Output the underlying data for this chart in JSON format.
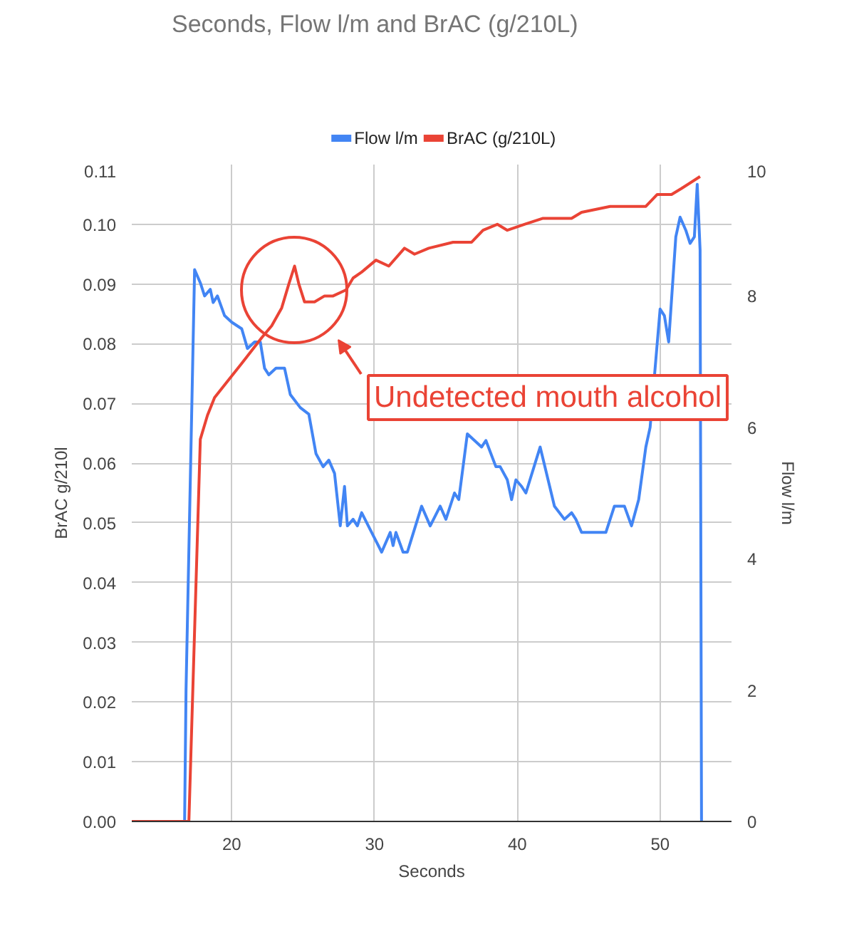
{
  "chart_data": {
    "type": "line",
    "title": "Seconds, Flow l/m and BrAC (g/210L)",
    "xlabel": "Seconds",
    "ylabel": "BrAC g/210l",
    "y2label": "Flow l/m",
    "series": [
      {
        "name": "Flow l/m",
        "color": "#4285f4",
        "axis": "y2",
        "x": [
          13,
          16.7,
          16.8,
          17.4,
          17.8,
          18.1,
          18.5,
          18.7,
          19.0,
          19.5,
          20.0,
          20.7,
          21.1,
          21.6,
          22.0,
          22.3,
          22.6,
          23.1,
          23.7,
          24.1,
          24.8,
          25.4,
          25.9,
          26.4,
          26.8,
          27.2,
          27.6,
          27.9,
          28.1,
          28.5,
          28.8,
          29.1,
          29.8,
          30.5,
          31.1,
          31.3,
          31.5,
          32.0,
          32.3,
          33.3,
          33.9,
          34.6,
          35.0,
          35.6,
          35.9,
          36.5,
          37.0,
          37.5,
          37.8,
          38.5,
          38.8,
          39.3,
          39.6,
          39.9,
          40.3,
          40.6,
          41.6,
          42.6,
          43.3,
          43.8,
          44.1,
          44.5,
          45.1,
          45.8,
          46.2,
          46.8,
          47.5,
          48.0,
          48.5,
          49.0,
          49.3,
          50.0,
          50.3,
          50.6,
          51.1,
          51.4,
          51.8,
          52.1,
          52.4,
          52.6,
          52.8,
          52.9
        ],
        "values": [
          0,
          0,
          2.0,
          8.4,
          8.2,
          8.0,
          8.1,
          7.9,
          8.0,
          7.7,
          7.6,
          7.5,
          7.2,
          7.3,
          7.3,
          6.9,
          6.8,
          6.9,
          6.9,
          6.5,
          6.3,
          6.2,
          5.6,
          5.4,
          5.5,
          5.3,
          4.5,
          5.1,
          4.5,
          4.6,
          4.5,
          4.7,
          4.4,
          4.1,
          4.4,
          4.2,
          4.4,
          4.1,
          4.1,
          4.8,
          4.5,
          4.8,
          4.6,
          5.0,
          4.9,
          5.9,
          5.8,
          5.7,
          5.8,
          5.4,
          5.4,
          5.2,
          4.9,
          5.2,
          5.1,
          5.0,
          5.7,
          4.8,
          4.6,
          4.7,
          4.6,
          4.4,
          4.4,
          4.4,
          4.4,
          4.8,
          4.8,
          4.5,
          4.9,
          5.7,
          6.0,
          7.8,
          7.7,
          7.3,
          8.9,
          9.2,
          9.0,
          8.8,
          8.9,
          9.7,
          8.7,
          0
        ]
      },
      {
        "name": "BrAC (g/210L)",
        "color": "#ea4335",
        "x": [
          13,
          17.0,
          17.8,
          18.3,
          18.8,
          19.8,
          20.8,
          22.1,
          22.8,
          23.5,
          24.0,
          24.4,
          24.7,
          25.1,
          25.8,
          26.5,
          27.1,
          28.0,
          28.5,
          29.1,
          30.1,
          31.0,
          32.1,
          32.8,
          33.8,
          35.5,
          36.8,
          37.6,
          38.6,
          39.3,
          40.5,
          41.8,
          43.1,
          43.8,
          44.5,
          46.5,
          48.1,
          49.0,
          49.8,
          50.8,
          51.5,
          52.8
        ],
        "values": [
          0,
          0,
          0.064,
          0.068,
          0.071,
          0.074,
          0.077,
          0.081,
          0.083,
          0.086,
          0.09,
          0.093,
          0.09,
          0.087,
          0.087,
          0.088,
          0.088,
          0.089,
          0.091,
          0.092,
          0.094,
          0.093,
          0.096,
          0.095,
          0.096,
          0.097,
          0.097,
          0.099,
          0.1,
          0.099,
          0.1,
          0.101,
          0.101,
          0.101,
          0.102,
          0.103,
          0.103,
          0.103,
          0.105,
          0.105,
          0.106,
          0.108
        ]
      }
    ],
    "xlim": [
      13,
      55
    ],
    "xticks": [
      20,
      30,
      40,
      50
    ],
    "ylim": [
      0,
      0.11
    ],
    "yticks": [
      {
        "value": 0,
        "label": "0.00"
      },
      {
        "value": 0.01,
        "label": "0.01"
      },
      {
        "value": 0.02,
        "label": "0.02"
      },
      {
        "value": 0.03,
        "label": "0.03"
      },
      {
        "value": 0.04,
        "label": "0.04"
      },
      {
        "value": 0.05,
        "label": "0.05"
      },
      {
        "value": 0.06,
        "label": "0.06"
      },
      {
        "value": 0.07,
        "label": "0.07"
      },
      {
        "value": 0.08,
        "label": "0.08"
      },
      {
        "value": 0.09,
        "label": "0.09"
      },
      {
        "value": 0.1,
        "label": "0.10"
      },
      {
        "value": 0.11,
        "label": "0.11"
      }
    ],
    "y2lim": [
      0,
      10
    ],
    "y2ticks": [
      0,
      2,
      4,
      6,
      8,
      10
    ],
    "grid": true,
    "legend": "top",
    "annotations": [
      "Undetected mouth alcohol"
    ]
  }
}
